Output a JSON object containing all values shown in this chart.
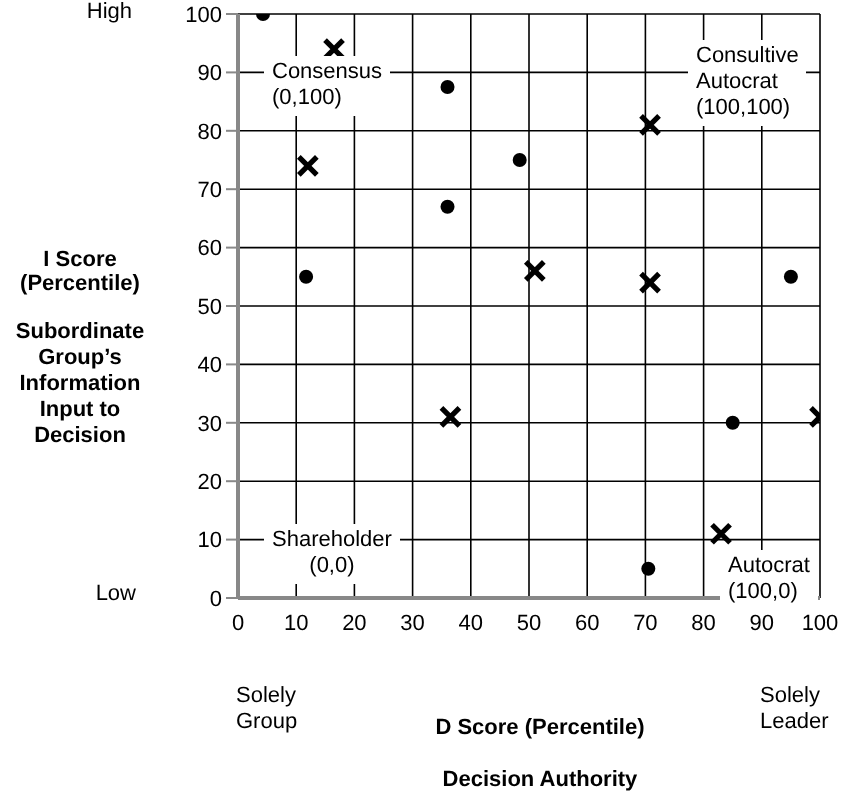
{
  "chart_data": {
    "type": "scatter",
    "xlabel": "D Score  (Percentile)",
    "ylabel": "I Score\n(Percentile)",
    "xlim": [
      0,
      100
    ],
    "xticks": [
      0,
      10,
      20,
      30,
      40,
      50,
      60,
      70,
      80,
      90,
      100
    ],
    "ylim": [
      0,
      100
    ],
    "yticks": [
      0,
      10,
      20,
      30,
      40,
      50,
      60,
      70,
      80,
      90,
      100
    ],
    "grid": true,
    "legend": false,
    "series": [
      {
        "color": "#000000",
        "marker": "circle",
        "x": [
          4.3,
          36,
          48.4,
          36,
          11.7,
          95,
          85,
          70.5
        ],
        "values": [
          100,
          87.5,
          75,
          67,
          55,
          55,
          30,
          5
        ]
      },
      {
        "color": "#000000",
        "marker": "cross",
        "x": [
          16.5,
          12,
          70.8,
          51,
          70.8,
          36.5,
          100,
          83
        ],
        "values": [
          94,
          74,
          81,
          56,
          54,
          31,
          31,
          11
        ]
      }
    ],
    "annotations": [
      "Consensus\n(0,100)",
      "Consultive\nAutocrat\n(100,100)",
      "Shareholder\n(0,0)",
      "Autocrat\n(100,0)",
      "High",
      "Low",
      "Solely\nGroup",
      "Solely\nLeader",
      "Subordinate\nGroup’s\nInformation\nInput to\nDecision",
      "Decision Authority"
    ]
  }
}
